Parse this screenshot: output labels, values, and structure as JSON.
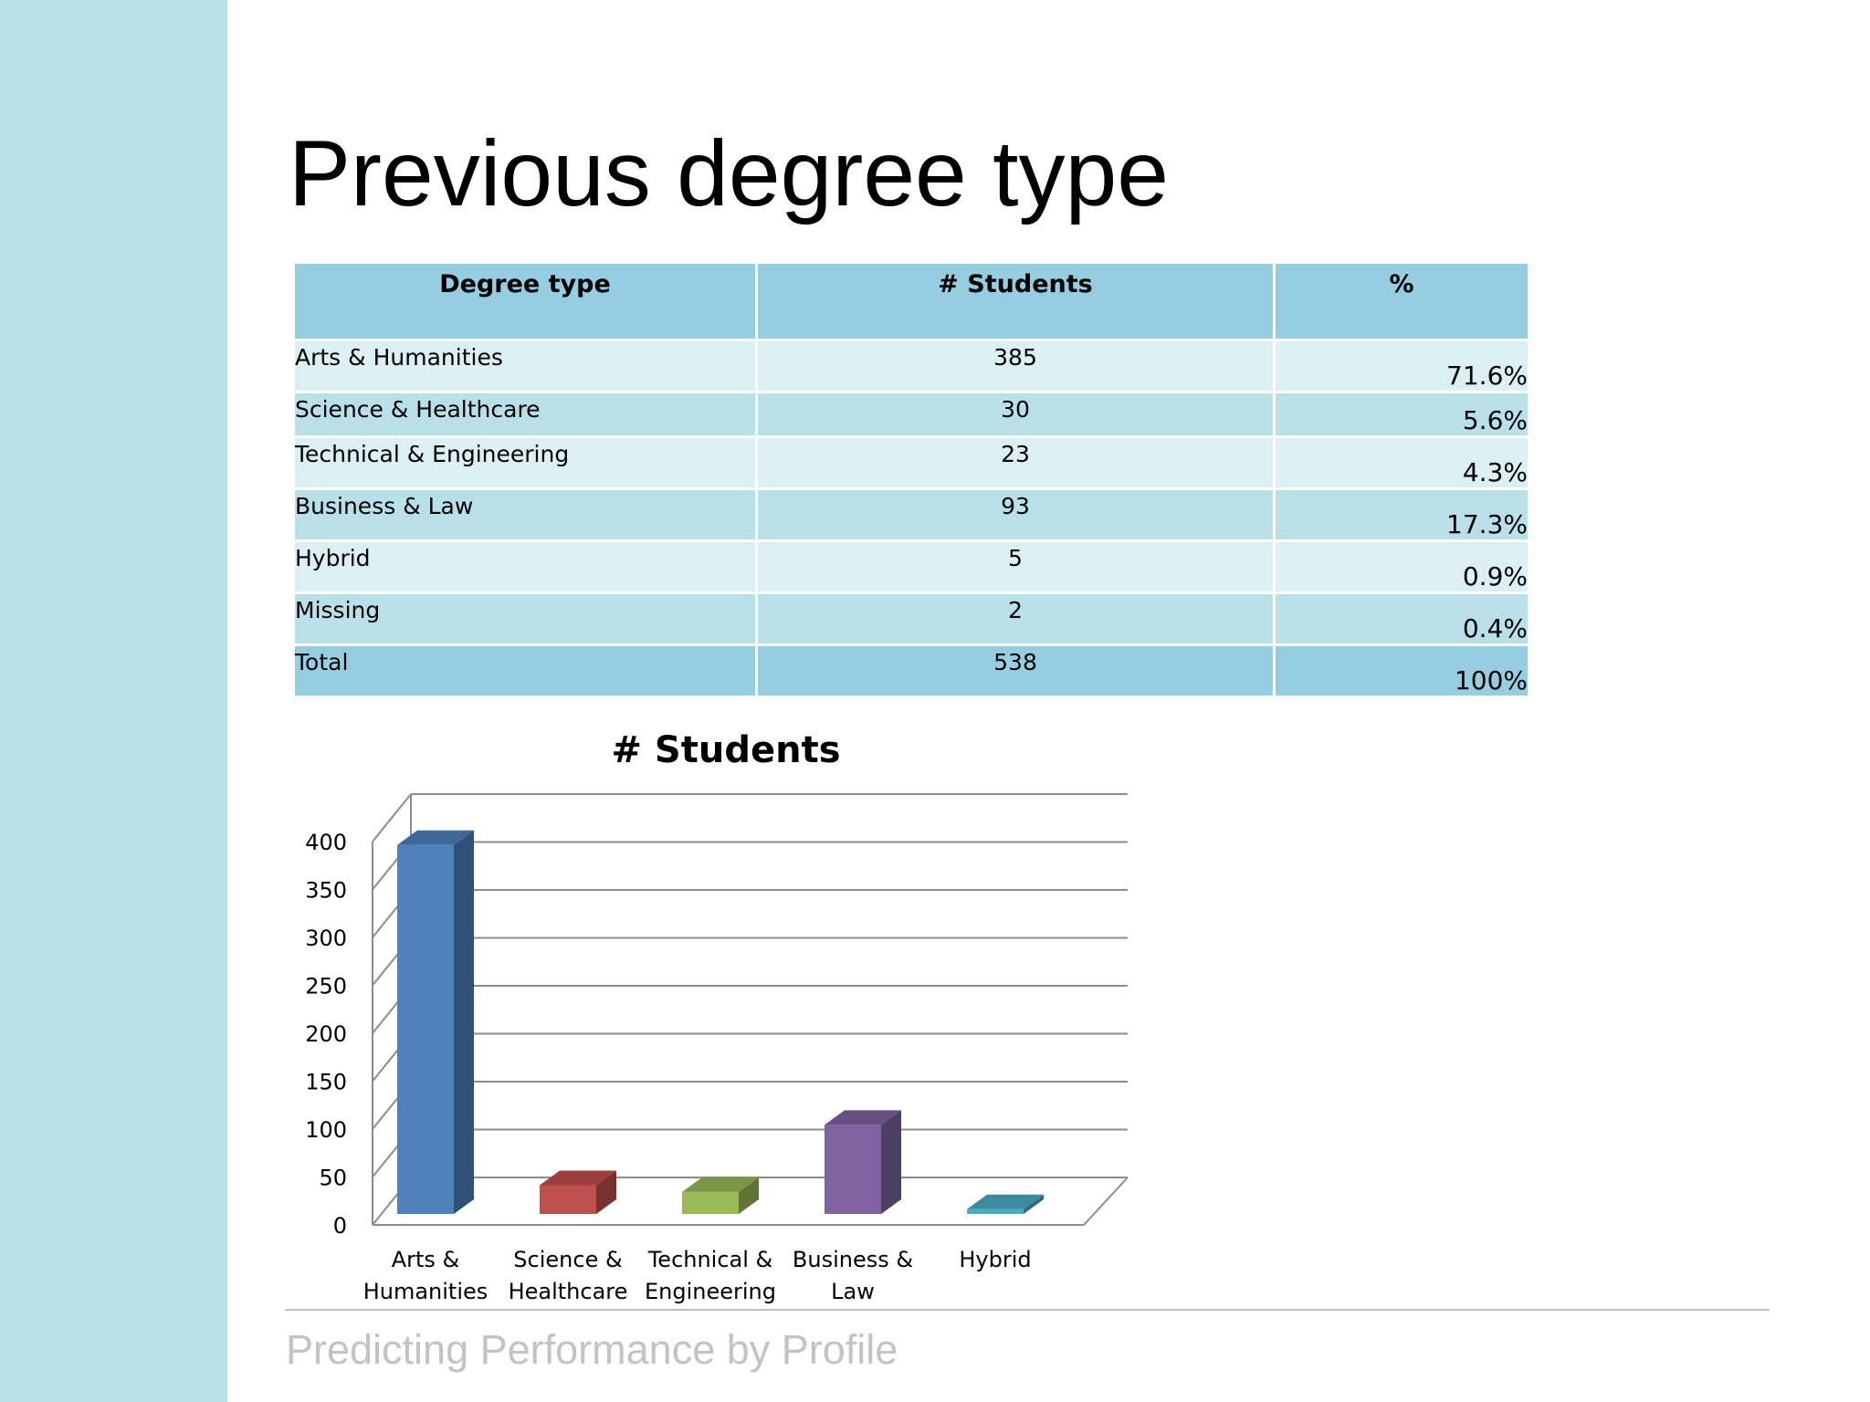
{
  "slide": {
    "title": "Previous degree type",
    "footer": "Predicting Performance by Profile"
  },
  "table": {
    "headers": [
      "Degree type",
      "# Students",
      "%"
    ],
    "rows": [
      {
        "type": "Arts & Humanities",
        "students": "385",
        "percent": "71.6%"
      },
      {
        "type": "Science & Healthcare",
        "students": "30",
        "percent": "5.6%"
      },
      {
        "type": "Technical & Engineering",
        "students": "23",
        "percent": "4.3%"
      },
      {
        "type": "Business & Law",
        "students": "93",
        "percent": "17.3%"
      },
      {
        "type": "Hybrid",
        "students": "5",
        "percent": "0.9%"
      },
      {
        "type": "Missing",
        "students": "2",
        "percent": "0.4%"
      },
      {
        "type": "Total",
        "students": "538",
        "percent": "100%"
      }
    ]
  },
  "chart_data": {
    "type": "bar",
    "title": "# Students",
    "categories": [
      [
        "Arts &",
        "Humanities"
      ],
      [
        "Science &",
        "Healthcare"
      ],
      [
        "Technical &",
        "Engineering"
      ],
      [
        "Business &",
        "Law"
      ],
      [
        "Hybrid"
      ]
    ],
    "values": [
      385,
      30,
      23,
      93,
      5
    ],
    "ylim": [
      0,
      400
    ],
    "yticks": [
      "0",
      "50",
      "100",
      "150",
      "200",
      "250",
      "300",
      "350",
      "400"
    ],
    "grid": true,
    "legend": "none",
    "colors": [
      "#4f81bd",
      "#c0504d",
      "#9bbb59",
      "#8064a2",
      "#4bacc6"
    ]
  }
}
